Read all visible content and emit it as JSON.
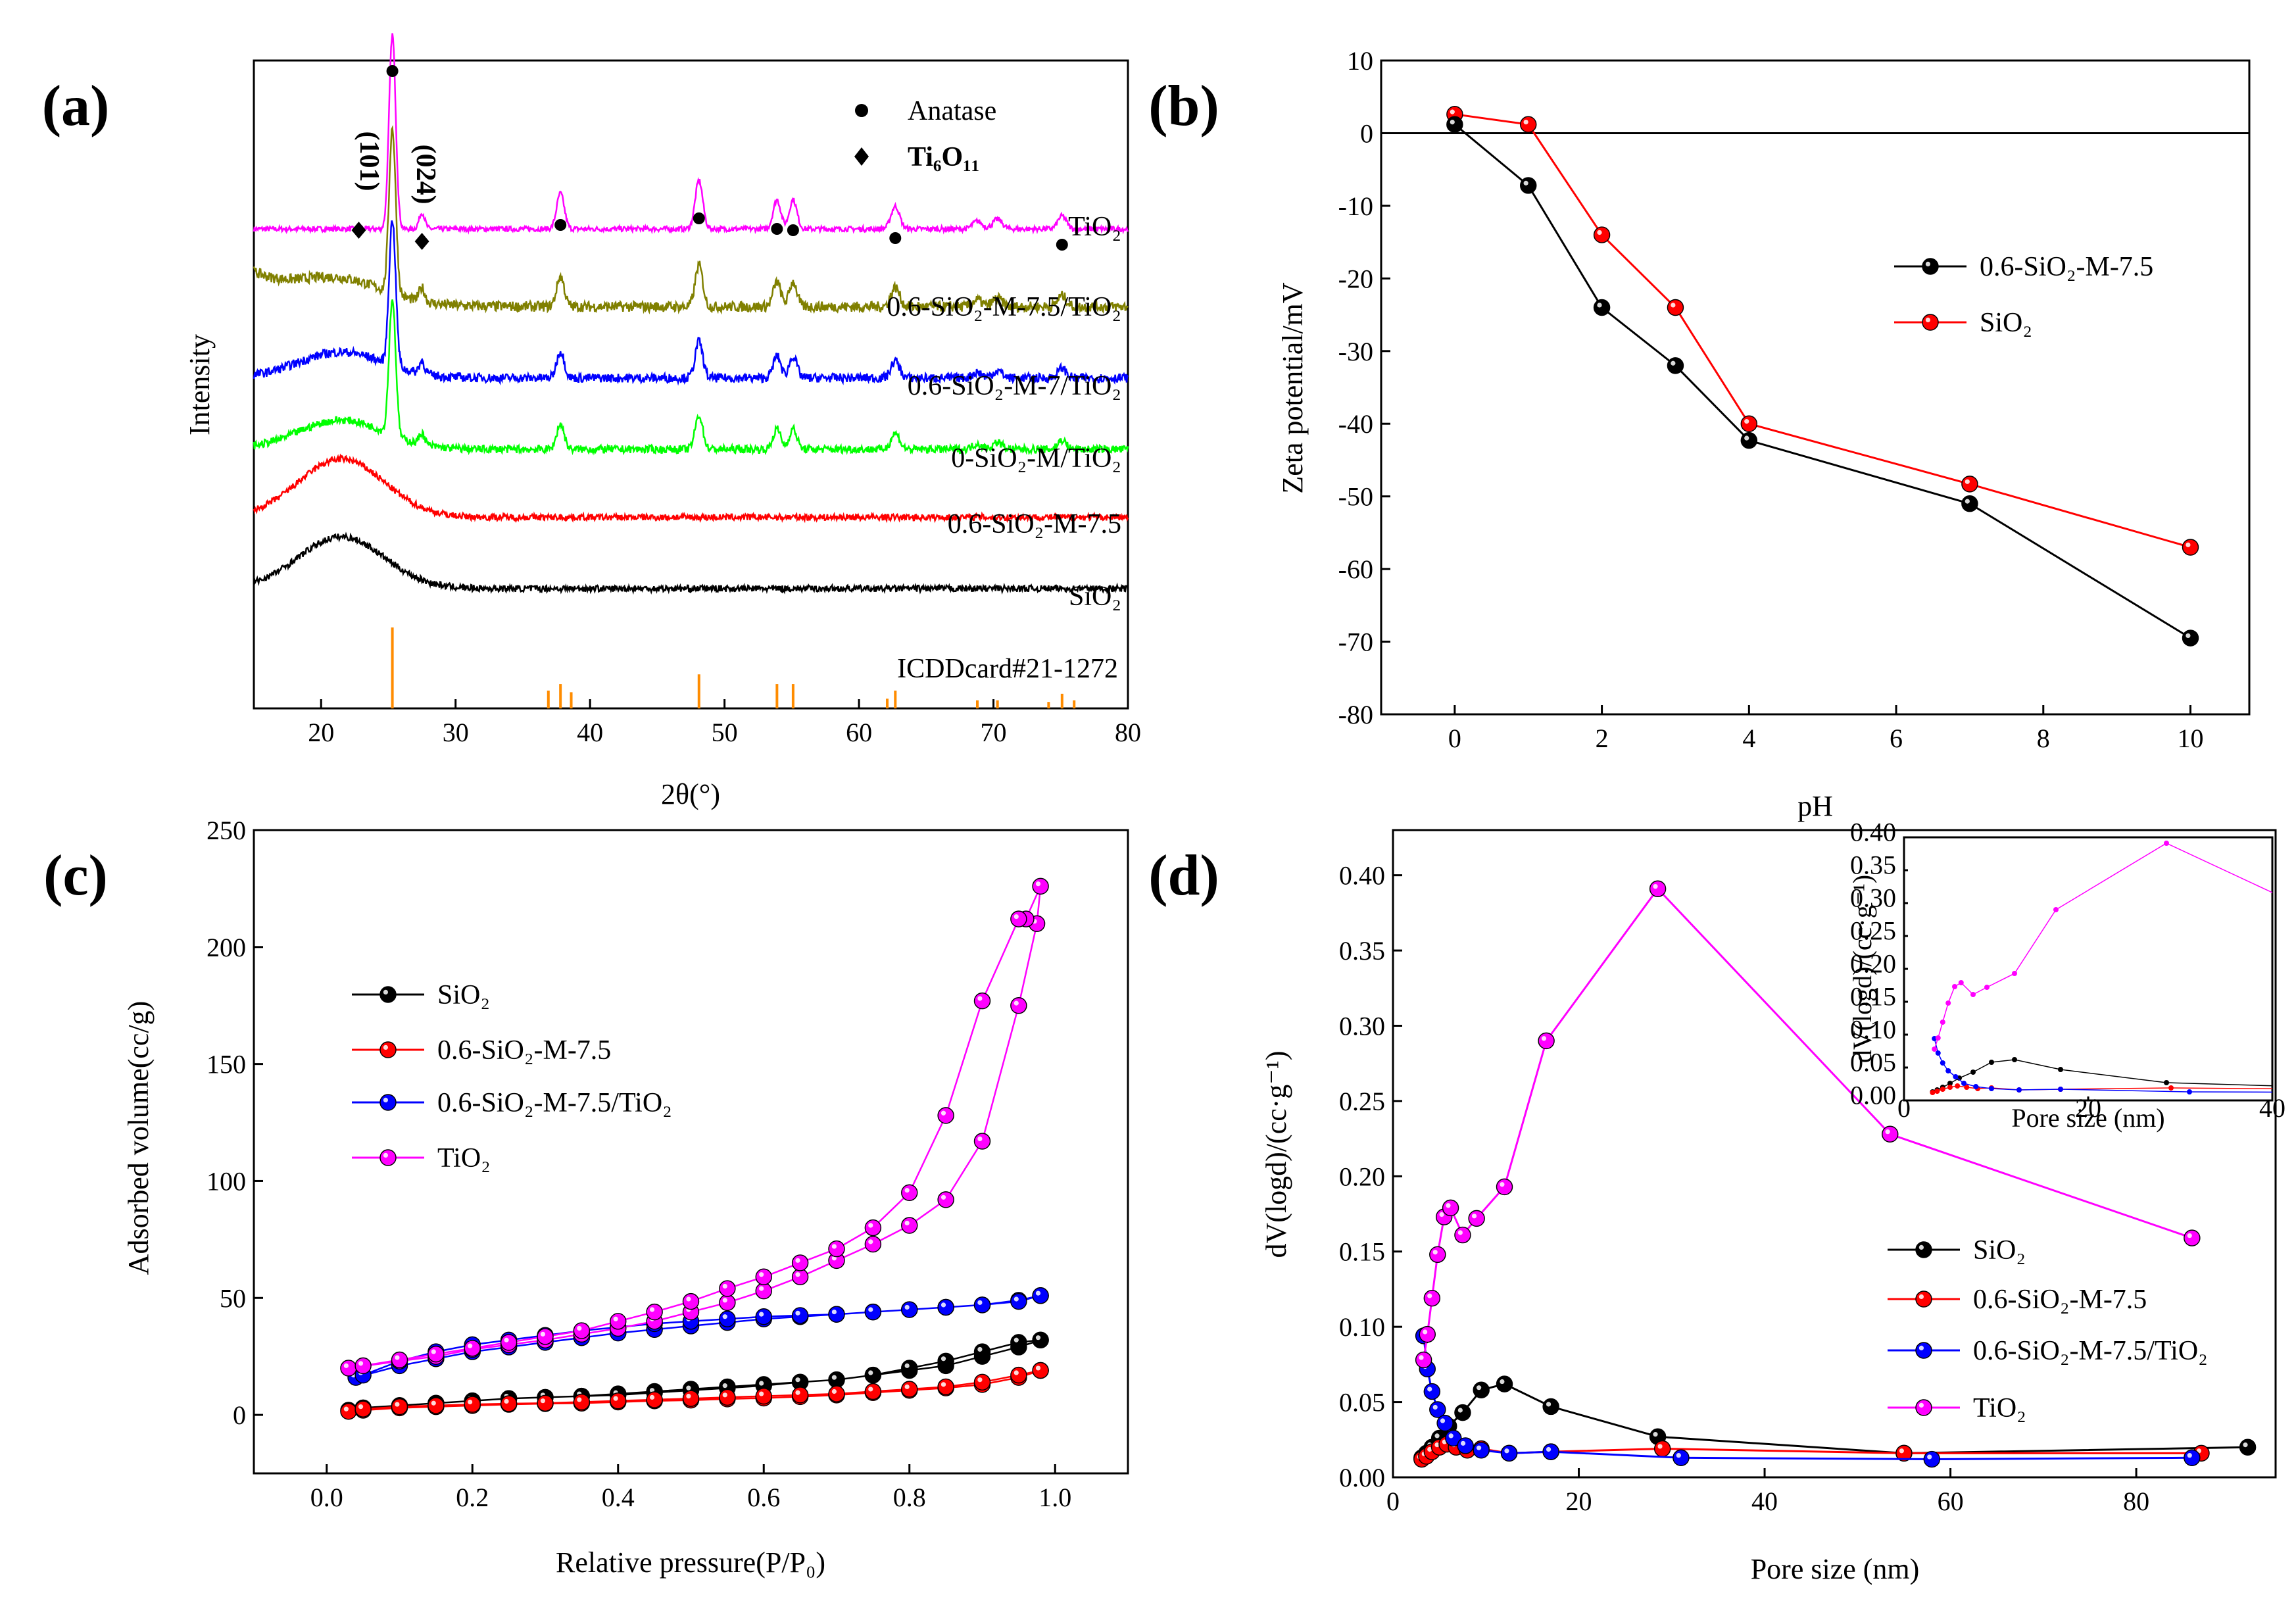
{
  "chart_data": [
    {
      "id": "a",
      "type": "line",
      "panel_label": "(a)",
      "xlabel": "2θ(°)",
      "ylabel": "Intensity",
      "xlim": [
        15,
        80
      ],
      "xticks": [
        20,
        30,
        40,
        50,
        60,
        70,
        80
      ],
      "yticks": [],
      "series": [
        {
          "name": "TiO₂",
          "color": "#ff00ff",
          "baseline": 6.0,
          "noise": 0.04,
          "hump": 0.0,
          "peakScale": 1.0
        },
        {
          "name": "0.6-SiO₂-M-7.5/TiO₂",
          "color": "#808000",
          "baseline": 4.8,
          "noise": 0.08,
          "hump": 0.35,
          "peakScale": 0.85
        },
        {
          "name": "0.6-SiO₂-M-7/TiO₂",
          "color": "#0000ff",
          "baseline": 3.7,
          "noise": 0.07,
          "hump": 0.4,
          "peakScale": 0.75
        },
        {
          "name": "0-SiO₂-M/TiO₂",
          "color": "#00ff00",
          "baseline": 2.6,
          "noise": 0.06,
          "hump": 0.45,
          "peakScale": 0.7
        },
        {
          "name": "0.6-SiO₂-M-7.5",
          "color": "#ff0000",
          "baseline": 1.55,
          "noise": 0.05,
          "hump": 0.9,
          "peakScale": 0.0
        },
        {
          "name": "SiO₂",
          "color": "#000000",
          "baseline": 0.45,
          "noise": 0.05,
          "hump": 0.8,
          "peakScale": 0.0
        }
      ],
      "peaks": [
        {
          "pos": 25.3,
          "height": 3.0,
          "width": 0.35
        },
        {
          "pos": 27.5,
          "height": 0.25,
          "width": 0.3
        },
        {
          "pos": 37.8,
          "height": 0.55,
          "width": 0.4
        },
        {
          "pos": 48.1,
          "height": 0.75,
          "width": 0.4
        },
        {
          "pos": 53.9,
          "height": 0.45,
          "width": 0.4
        },
        {
          "pos": 55.1,
          "height": 0.45,
          "width": 0.4
        },
        {
          "pos": 62.7,
          "height": 0.35,
          "width": 0.45
        },
        {
          "pos": 68.8,
          "height": 0.12,
          "width": 0.5
        },
        {
          "pos": 70.3,
          "height": 0.15,
          "width": 0.5
        },
        {
          "pos": 75.1,
          "height": 0.2,
          "width": 0.45
        }
      ],
      "reference_lines": [
        25.3,
        36.9,
        37.8,
        38.6,
        48.1,
        53.9,
        55.1,
        62.1,
        62.7,
        68.8,
        70.3,
        74.1,
        75.1,
        76.0
      ],
      "reference_heights": [
        1.0,
        0.22,
        0.3,
        0.2,
        0.42,
        0.3,
        0.3,
        0.12,
        0.22,
        0.1,
        0.1,
        0.08,
        0.18,
        0.1
      ],
      "reference_label": "ICDDcard#21-1272",
      "anatase_markers": [
        25.3,
        37.8,
        48.1,
        53.9,
        55.1,
        62.7,
        75.1
      ],
      "ti6o11_markers": [
        22.8,
        27.5
      ],
      "legend": [
        {
          "symbol": "●",
          "label": "Anatase"
        },
        {
          "symbol": "◆",
          "label": "Ti₆O₁₁"
        }
      ],
      "annotations": [
        "(101)",
        "(024)"
      ]
    },
    {
      "id": "b",
      "type": "line",
      "panel_label": "(b)",
      "xlabel": "pH",
      "ylabel": "Zeta potential/mV",
      "xlim": [
        -1,
        10.8
      ],
      "ylim": [
        -80,
        10
      ],
      "xticks": [
        0,
        2,
        4,
        6,
        8,
        10
      ],
      "yticks": [
        10,
        0,
        -10,
        -20,
        -30,
        -40,
        -50,
        -60,
        -70,
        -80
      ],
      "zero_line": true,
      "series": [
        {
          "name": "0.6-SiO₂-M-7.5",
          "color": "#000000",
          "x": [
            0,
            1,
            2,
            3,
            4,
            7,
            10
          ],
          "y": [
            1.2,
            -7.2,
            -24,
            -32,
            -42.3,
            -51,
            -69.5
          ]
        },
        {
          "name": "SiO₂",
          "color": "#ff0000",
          "x": [
            0,
            1,
            2,
            3,
            4,
            7,
            10
          ],
          "y": [
            2.6,
            1.2,
            -14,
            -24,
            -40,
            -48.3,
            -57
          ]
        }
      ]
    },
    {
      "id": "c",
      "type": "line",
      "panel_label": "(c)",
      "xlabel": "Relative pressure(P/P₀)",
      "ylabel": "Adsorbed volume(cc/g)",
      "xlim": [
        -0.1,
        1.1
      ],
      "ylim": [
        -25,
        250
      ],
      "xticks": [
        0.0,
        0.2,
        0.4,
        0.6,
        0.8,
        1.0
      ],
      "yticks": [
        0,
        50,
        100,
        150,
        200,
        250
      ],
      "series": [
        {
          "name": "SiO₂",
          "color": "#000000",
          "x": [
            0.03,
            0.05,
            0.1,
            0.15,
            0.2,
            0.25,
            0.3,
            0.35,
            0.4,
            0.45,
            0.5,
            0.55,
            0.6,
            0.65,
            0.7,
            0.75,
            0.8,
            0.85,
            0.9,
            0.95,
            0.98,
            0.98,
            0.95,
            0.9,
            0.85,
            0.8,
            0.75,
            0.7,
            0.65,
            0.6,
            0.55,
            0.5,
            0.45,
            0.4,
            0.35,
            0.3,
            0.25,
            0.2,
            0.15,
            0.1,
            0.05
          ],
          "y": [
            2,
            3,
            4,
            5,
            6,
            7,
            7.5,
            8,
            9,
            10,
            11,
            12,
            13,
            14,
            15,
            17,
            19,
            21,
            25,
            29,
            32,
            32,
            31,
            27,
            23,
            20,
            17,
            15,
            14,
            12.5,
            11.5,
            10.5,
            9.5,
            8.5,
            8,
            7.5,
            7,
            6,
            5,
            4,
            3
          ]
        },
        {
          "name": "0.6-SiO₂-M-7.5",
          "color": "#ff0000",
          "x": [
            0.03,
            0.05,
            0.1,
            0.15,
            0.2,
            0.25,
            0.3,
            0.35,
            0.4,
            0.45,
            0.5,
            0.55,
            0.6,
            0.65,
            0.7,
            0.75,
            0.8,
            0.85,
            0.9,
            0.95,
            0.98,
            0.98,
            0.95,
            0.9,
            0.85,
            0.8,
            0.75,
            0.7,
            0.65,
            0.6,
            0.55,
            0.5,
            0.45,
            0.4,
            0.35,
            0.3,
            0.25,
            0.2,
            0.15,
            0.1,
            0.05
          ],
          "y": [
            1.5,
            2,
            3,
            3.5,
            4,
            4.5,
            4.8,
            5,
            5.5,
            6,
            6.3,
            6.8,
            7.2,
            7.8,
            8.5,
            9.5,
            10.5,
            11.5,
            13,
            16,
            19,
            19,
            17,
            14,
            12,
            11,
            10,
            9,
            8.5,
            8,
            7.5,
            7,
            6.5,
            6,
            5.5,
            5,
            4.8,
            4.5,
            4,
            3.5,
            2.5
          ]
        },
        {
          "name": "0.6-SiO₂-M-7.5/TiO₂",
          "color": "#0000ff",
          "x": [
            0.04,
            0.1,
            0.15,
            0.2,
            0.25,
            0.3,
            0.35,
            0.4,
            0.45,
            0.5,
            0.55,
            0.6,
            0.65,
            0.7,
            0.75,
            0.8,
            0.85,
            0.9,
            0.95,
            0.98,
            0.98,
            0.95,
            0.9,
            0.85,
            0.8,
            0.75,
            0.7,
            0.65,
            0.6,
            0.55,
            0.5,
            0.45,
            0.4,
            0.35,
            0.3,
            0.25,
            0.2,
            0.15,
            0.1,
            0.05
          ],
          "y": [
            16,
            21,
            24,
            27,
            29,
            31,
            33,
            35,
            36.5,
            38,
            39.5,
            41,
            42,
            43,
            44,
            45,
            46,
            47,
            49,
            51,
            51,
            48.5,
            47,
            46,
            45,
            44,
            43,
            42.5,
            42,
            41,
            40,
            39,
            37.5,
            36,
            34,
            32,
            30,
            27,
            23,
            17
          ]
        },
        {
          "name": "TiO₂",
          "color": "#ff00ff",
          "x": [
            0.03,
            0.1,
            0.15,
            0.2,
            0.25,
            0.3,
            0.35,
            0.4,
            0.45,
            0.5,
            0.55,
            0.6,
            0.65,
            0.7,
            0.75,
            0.8,
            0.85,
            0.9,
            0.95,
            0.975,
            0.98,
            0.96,
            0.95,
            0.9,
            0.85,
            0.8,
            0.75,
            0.7,
            0.65,
            0.6,
            0.55,
            0.5,
            0.45,
            0.4,
            0.35,
            0.3,
            0.25,
            0.2,
            0.15,
            0.1,
            0.05
          ],
          "y": [
            20,
            23,
            25,
            28,
            30,
            32,
            34.5,
            37,
            40,
            44,
            48,
            53,
            59,
            66,
            73,
            81,
            92,
            117,
            175,
            210,
            226,
            212,
            212,
            177,
            128,
            95,
            80,
            71,
            65,
            59,
            54,
            48.5,
            44,
            40,
            36,
            33.5,
            31,
            28.5,
            26,
            23.5,
            21
          ]
        }
      ]
    },
    {
      "id": "d",
      "type": "line",
      "panel_label": "(d)",
      "xlabel": "Pore size (nm)",
      "ylabel": "dV(logd)/(cc·g⁻¹)",
      "xlim": [
        0,
        95
      ],
      "ylim": [
        0,
        0.43
      ],
      "xticks": [
        0,
        20,
        40,
        60,
        80
      ],
      "yticks": [
        0.0,
        0.05,
        0.1,
        0.15,
        0.2,
        0.25,
        0.3,
        0.35,
        0.4
      ],
      "series": [
        {
          "name": "SiO₂",
          "color": "#000000",
          "x": [
            3.1,
            3.6,
            4.2,
            5.0,
            6.0,
            7.5,
            9.5,
            12,
            17,
            28.5,
            55,
            92
          ],
          "y": [
            0.013,
            0.016,
            0.02,
            0.026,
            0.034,
            0.043,
            0.058,
            0.062,
            0.047,
            0.027,
            0.016,
            0.02
          ]
        },
        {
          "name": "0.6-SiO₂-M-7.5",
          "color": "#ff0000",
          "x": [
            3.1,
            3.6,
            4.2,
            5.0,
            5.8,
            6.8,
            8.0,
            9.5,
            12.5,
            17,
            29,
            55,
            87
          ],
          "y": [
            0.012,
            0.014,
            0.017,
            0.02,
            0.022,
            0.02,
            0.018,
            0.019,
            0.016,
            0.017,
            0.019,
            0.016,
            0.016
          ]
        },
        {
          "name": "0.6-SiO₂-M-7.5/TiO₂",
          "color": "#0000ff",
          "x": [
            3.3,
            3.7,
            4.2,
            4.8,
            5.6,
            6.5,
            7.8,
            9.5,
            12.5,
            17,
            31,
            58,
            86
          ],
          "y": [
            0.094,
            0.072,
            0.057,
            0.045,
            0.036,
            0.026,
            0.021,
            0.018,
            0.016,
            0.017,
            0.013,
            0.012,
            0.013
          ]
        },
        {
          "name": "TiO₂",
          "color": "#ff00ff",
          "x": [
            3.3,
            3.7,
            4.2,
            4.8,
            5.5,
            6.2,
            7.5,
            9.0,
            12,
            16.5,
            28.5,
            53.5,
            86
          ],
          "y": [
            0.078,
            0.095,
            0.119,
            0.148,
            0.173,
            0.179,
            0.161,
            0.172,
            0.193,
            0.29,
            0.391,
            0.228,
            0.159
          ]
        }
      ],
      "inset": {
        "xlabel": "Pore size (nm)",
        "ylabel": "dV(logd)/(cc·g⁻¹)",
        "xlim": [
          0,
          40
        ],
        "ylim": [
          0,
          0.4
        ],
        "xticks": [
          0,
          20,
          40
        ],
        "yticks": [
          0.0,
          0.05,
          0.1,
          0.15,
          0.2,
          0.25,
          0.3,
          0.35,
          0.4
        ]
      }
    }
  ]
}
